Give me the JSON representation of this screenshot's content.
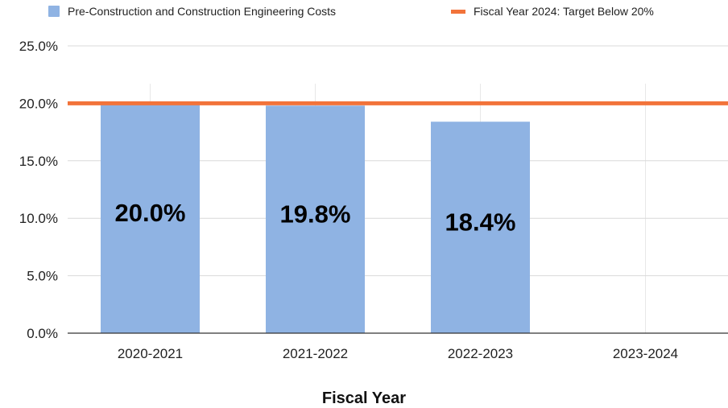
{
  "colors": {
    "bar": "#8fb3e3",
    "target_line": "#f2733a",
    "grid": "#d9d9d9",
    "axis": "#333333",
    "text": "#222222",
    "bar_label": "#000000"
  },
  "legend": {
    "placement": "top",
    "bar_series": "Pre-Construction and Construction Engineering Costs",
    "line_series": "Fiscal Year 2024: Target Below 20%"
  },
  "chart_data": {
    "type": "bar",
    "title": "",
    "xlabel": "Fiscal Year",
    "ylabel": "",
    "categories": [
      "2020-2021",
      "2021-2022",
      "2022-2023",
      "2023-2024"
    ],
    "series": [
      {
        "name": "Pre-Construction and Construction Engineering Costs",
        "values": [
          20.0,
          19.8,
          18.4,
          null
        ],
        "data_labels": [
          "20.0%",
          "19.8%",
          "18.4%",
          ""
        ]
      },
      {
        "name": "Fiscal Year 2024: Target Below 20%",
        "type": "line",
        "value": 20.0
      }
    ],
    "ylim": [
      0,
      25
    ],
    "yticks": [
      0,
      5,
      10,
      15,
      20,
      25
    ],
    "ytick_labels": [
      "0.0%",
      "5.0%",
      "10.0%",
      "15.0%",
      "20.0%",
      "25.0%"
    ],
    "grid": true
  }
}
